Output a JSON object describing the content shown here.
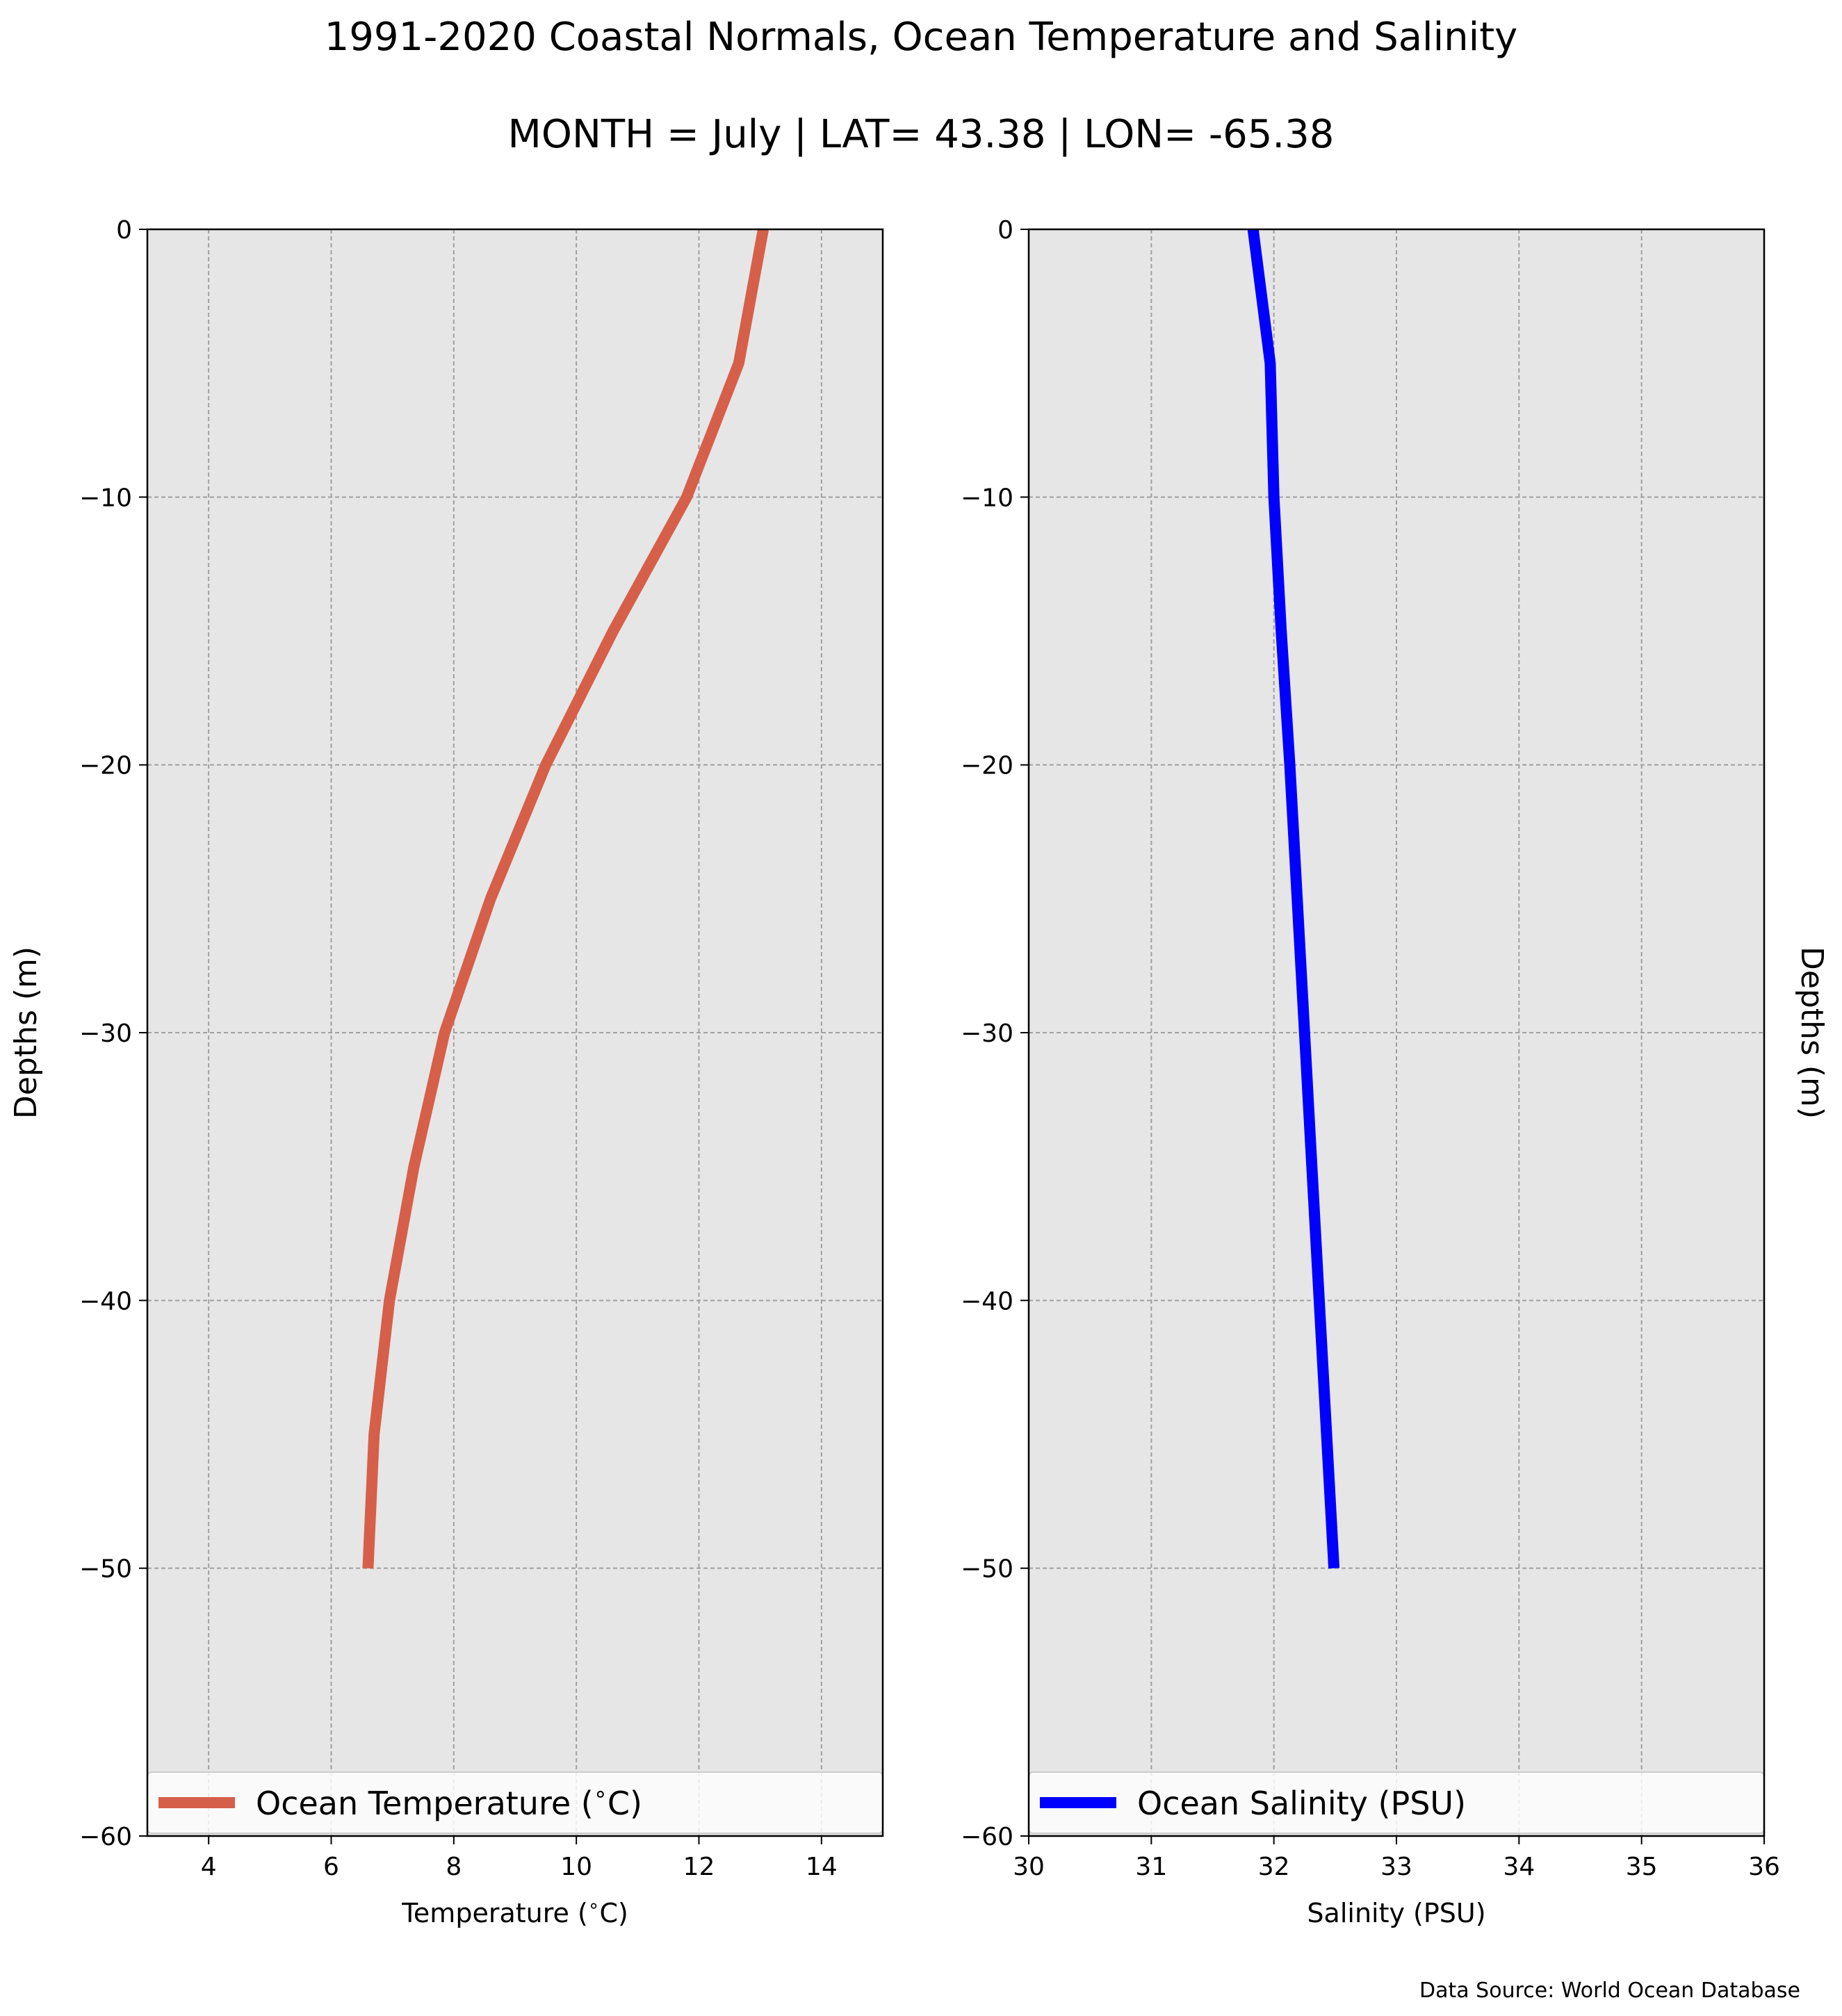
{
  "figure": {
    "title": "1991-2020 Coastal Normals, Ocean Temperature and Salinity",
    "subtitle": "MONTH = July | LAT= 43.38 | LON= -65.38",
    "source": "Data Source: World Ocean Database"
  },
  "colors": {
    "temperature_line": "#d65f4a",
    "salinity_line": "#0000ff",
    "axes_background": "#e6e6e6",
    "grid": "#a0a0a0"
  },
  "chart_data": [
    {
      "type": "line",
      "xlabel": "Temperature ($^\\circ$C)",
      "ylabel": "Depths (m)",
      "xlim": [
        3,
        15
      ],
      "ylim": [
        -60,
        0
      ],
      "x_ticks": [
        4,
        6,
        8,
        10,
        12,
        14
      ],
      "x_tick_labels": [
        "4",
        "6",
        "8",
        "10",
        "12",
        "14"
      ],
      "y_ticks": [
        0,
        -10,
        -20,
        -30,
        -40,
        -50,
        -60
      ],
      "y_tick_labels": [
        "0",
        "−10",
        "−20",
        "−30",
        "−40",
        "−50",
        "−60"
      ],
      "grid": true,
      "legend_position": "bottom",
      "series": [
        {
          "name": "Ocean Temperature ($^\\circ$C)",
          "color": "#d65f4a",
          "x": [
            13.05,
            12.65,
            11.8,
            10.6,
            9.5,
            8.6,
            7.85,
            7.35,
            6.95,
            6.7,
            6.6
          ],
          "y": [
            0,
            -5,
            -10,
            -15,
            -20,
            -25,
            -30,
            -35,
            -40,
            -45,
            -50
          ]
        }
      ]
    },
    {
      "type": "line",
      "xlabel": "Salinity (PSU)",
      "ylabel": "Depths (m)",
      "xlim": [
        30,
        36
      ],
      "ylim": [
        -60,
        0
      ],
      "x_ticks": [
        30,
        31,
        32,
        33,
        34,
        35,
        36
      ],
      "x_tick_labels": [
        "30",
        "31",
        "32",
        "33",
        "34",
        "35",
        "36"
      ],
      "y_ticks": [
        0,
        -10,
        -20,
        -30,
        -40,
        -50,
        -60
      ],
      "y_tick_labels": [
        "0",
        "−10",
        "−20",
        "−30",
        "−40",
        "−50",
        "−60"
      ],
      "grid": true,
      "legend_position": "bottom",
      "series": [
        {
          "name": "Ocean Salinity (PSU)",
          "color": "#0000ff",
          "x": [
            31.83,
            31.97,
            32.0,
            32.06,
            32.13,
            32.19,
            32.25,
            32.31,
            32.37,
            32.43,
            32.49
          ],
          "y": [
            0,
            -5,
            -10,
            -15,
            -20,
            -25,
            -30,
            -35,
            -40,
            -45,
            -50
          ]
        }
      ]
    }
  ]
}
